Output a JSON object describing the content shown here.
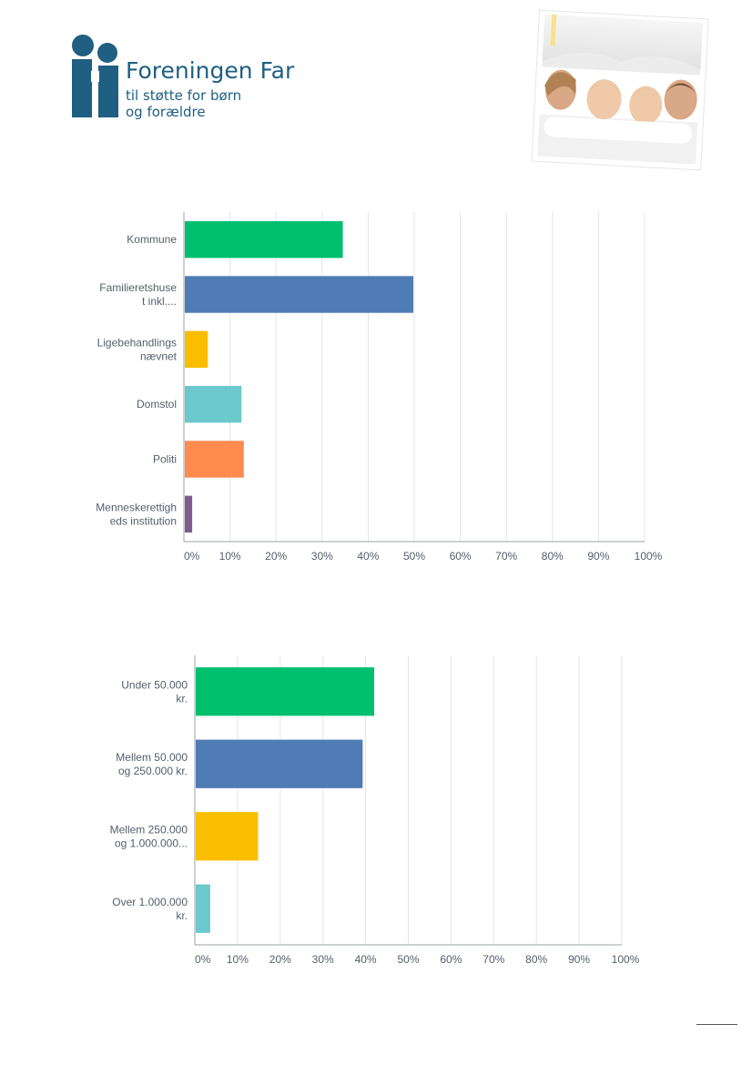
{
  "brand": {
    "title": "Foreningen Far",
    "subtitle_lines": [
      "til støtte for børn",
      "og forældre"
    ],
    "color": "#1f5f82"
  },
  "photo": {
    "icon": "family-under-blanket-photo"
  },
  "chart_data": [
    {
      "type": "bar",
      "orientation": "horizontal",
      "categories": [
        [
          "Kommune"
        ],
        [
          "Familieretshuse",
          "t inkl...."
        ],
        [
          "Ligebehandlings",
          "nævnet"
        ],
        [
          "Domstol"
        ],
        [
          "Politi"
        ],
        [
          "Menneskerettigh",
          "eds institution"
        ]
      ],
      "values": [
        34.5,
        49.8,
        5.2,
        12.5,
        13.0,
        1.8
      ],
      "colors": [
        "#00bf6f",
        "#507cb6",
        "#f9be00",
        "#6bc8cd",
        "#ff8b4f",
        "#7f5b8e"
      ],
      "xlim": [
        0,
        100
      ],
      "ticks": [
        "0%",
        "10%",
        "20%",
        "30%",
        "40%",
        "50%",
        "60%",
        "70%",
        "80%",
        "90%",
        "100%"
      ],
      "grid": true,
      "title": "",
      "xlabel": "",
      "ylabel": ""
    },
    {
      "type": "bar",
      "orientation": "horizontal",
      "categories": [
        [
          "Under 50.000",
          "kr."
        ],
        [
          "Mellem 50.000",
          "og 250.000 kr."
        ],
        [
          "Mellem 250.000",
          "og 1.000.000..."
        ],
        [
          "Over 1.000.000",
          "kr."
        ]
      ],
      "values": [
        42.0,
        39.3,
        14.8,
        3.6
      ],
      "colors": [
        "#00bf6f",
        "#507cb6",
        "#f9be00",
        "#6bc8cd"
      ],
      "xlim": [
        0,
        100
      ],
      "ticks": [
        "0%",
        "10%",
        "20%",
        "30%",
        "40%",
        "50%",
        "60%",
        "70%",
        "80%",
        "90%",
        "100%"
      ],
      "grid": true,
      "title": "",
      "xlabel": "",
      "ylabel": ""
    }
  ]
}
